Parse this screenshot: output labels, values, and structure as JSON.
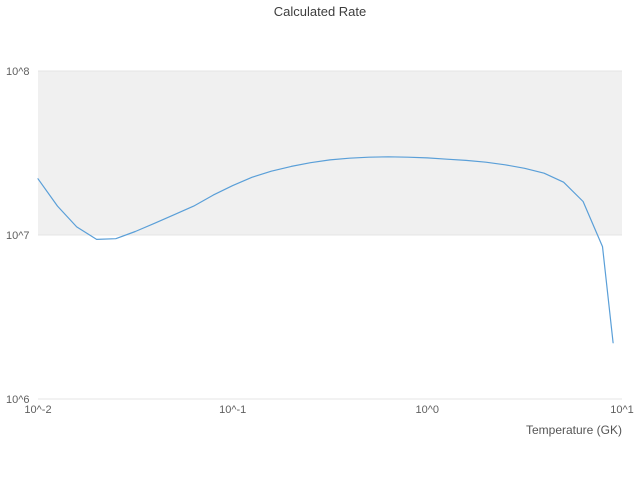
{
  "chart": {
    "title": "Calculated Rate",
    "x_axis_label": "Temperature (GK)"
  },
  "chart_data": {
    "type": "line",
    "title": "Calculated Rate",
    "xlabel": "Temperature (GK)",
    "ylabel": "",
    "x_scale": "log",
    "y_scale": "log",
    "xlim": [
      0.01,
      10
    ],
    "ylim": [
      1000000,
      100000000
    ],
    "grid": "horizontal-decade-bands",
    "legend": "none",
    "x_tick_values": [
      0.01,
      0.1,
      1,
      10
    ],
    "x_tick_labels": [
      "10^-2",
      "10^-1",
      "10^0",
      "10^1"
    ],
    "y_tick_values": [
      1000000,
      10000000,
      100000000
    ],
    "y_tick_labels": [
      "10^6",
      "10^7",
      "10^8"
    ],
    "line_color": "#5a9fd8",
    "gridline_color": "#e4e4e4",
    "plot_bands": [
      {
        "from": 10000000,
        "to": 100000000,
        "color": "#f0f0f0"
      }
    ],
    "x": [
      0.01,
      0.0126,
      0.0158,
      0.02,
      0.0251,
      0.0316,
      0.0398,
      0.0501,
      0.0631,
      0.0794,
      0.1,
      0.126,
      0.158,
      0.2,
      0.251,
      0.316,
      0.398,
      0.501,
      0.631,
      0.794,
      1.0,
      1.26,
      1.58,
      2.0,
      2.51,
      3.16,
      3.98,
      5.01,
      6.31,
      7.94,
      9.0
    ],
    "y": [
      22000000,
      15000000,
      11200000,
      9400000,
      9500000,
      10500000,
      11800000,
      13300000,
      15000000,
      17500000,
      20000000,
      22500000,
      24500000,
      26200000,
      27600000,
      28700000,
      29400000,
      29800000,
      30000000,
      29800000,
      29500000,
      29000000,
      28500000,
      27800000,
      26800000,
      25500000,
      23800000,
      21000000,
      16000000,
      8500000,
      2200000
    ]
  }
}
